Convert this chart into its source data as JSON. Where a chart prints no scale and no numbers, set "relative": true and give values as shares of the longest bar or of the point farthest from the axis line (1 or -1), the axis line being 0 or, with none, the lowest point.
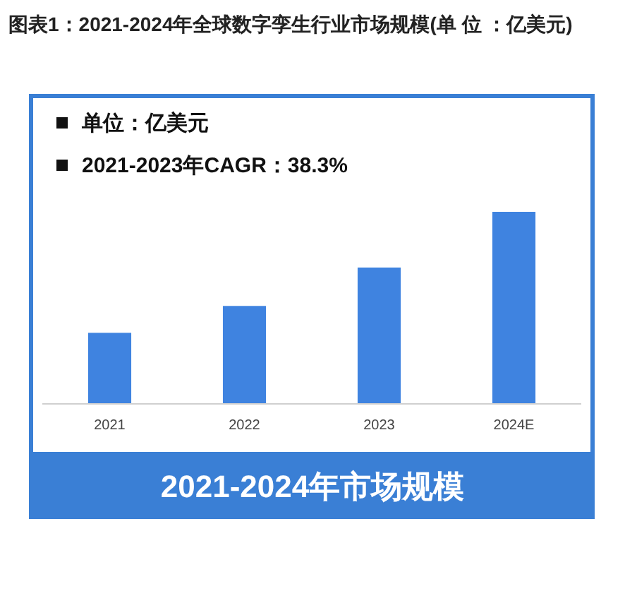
{
  "chart_data": {
    "type": "bar",
    "title": "图表1：2021-2024年全球数字孪生行业市场规模(单 位 ：亿美元)",
    "subtitle": "2021-2024年市场规模",
    "annotations": [
      "单位：亿美元",
      "2021-2023年CAGR：38.3%"
    ],
    "categories": [
      "2021",
      "2022",
      "2023",
      "2024E"
    ],
    "values": [
      0.37,
      0.51,
      0.71,
      1
    ],
    "color": "#3f83e0",
    "relative": true
  }
}
